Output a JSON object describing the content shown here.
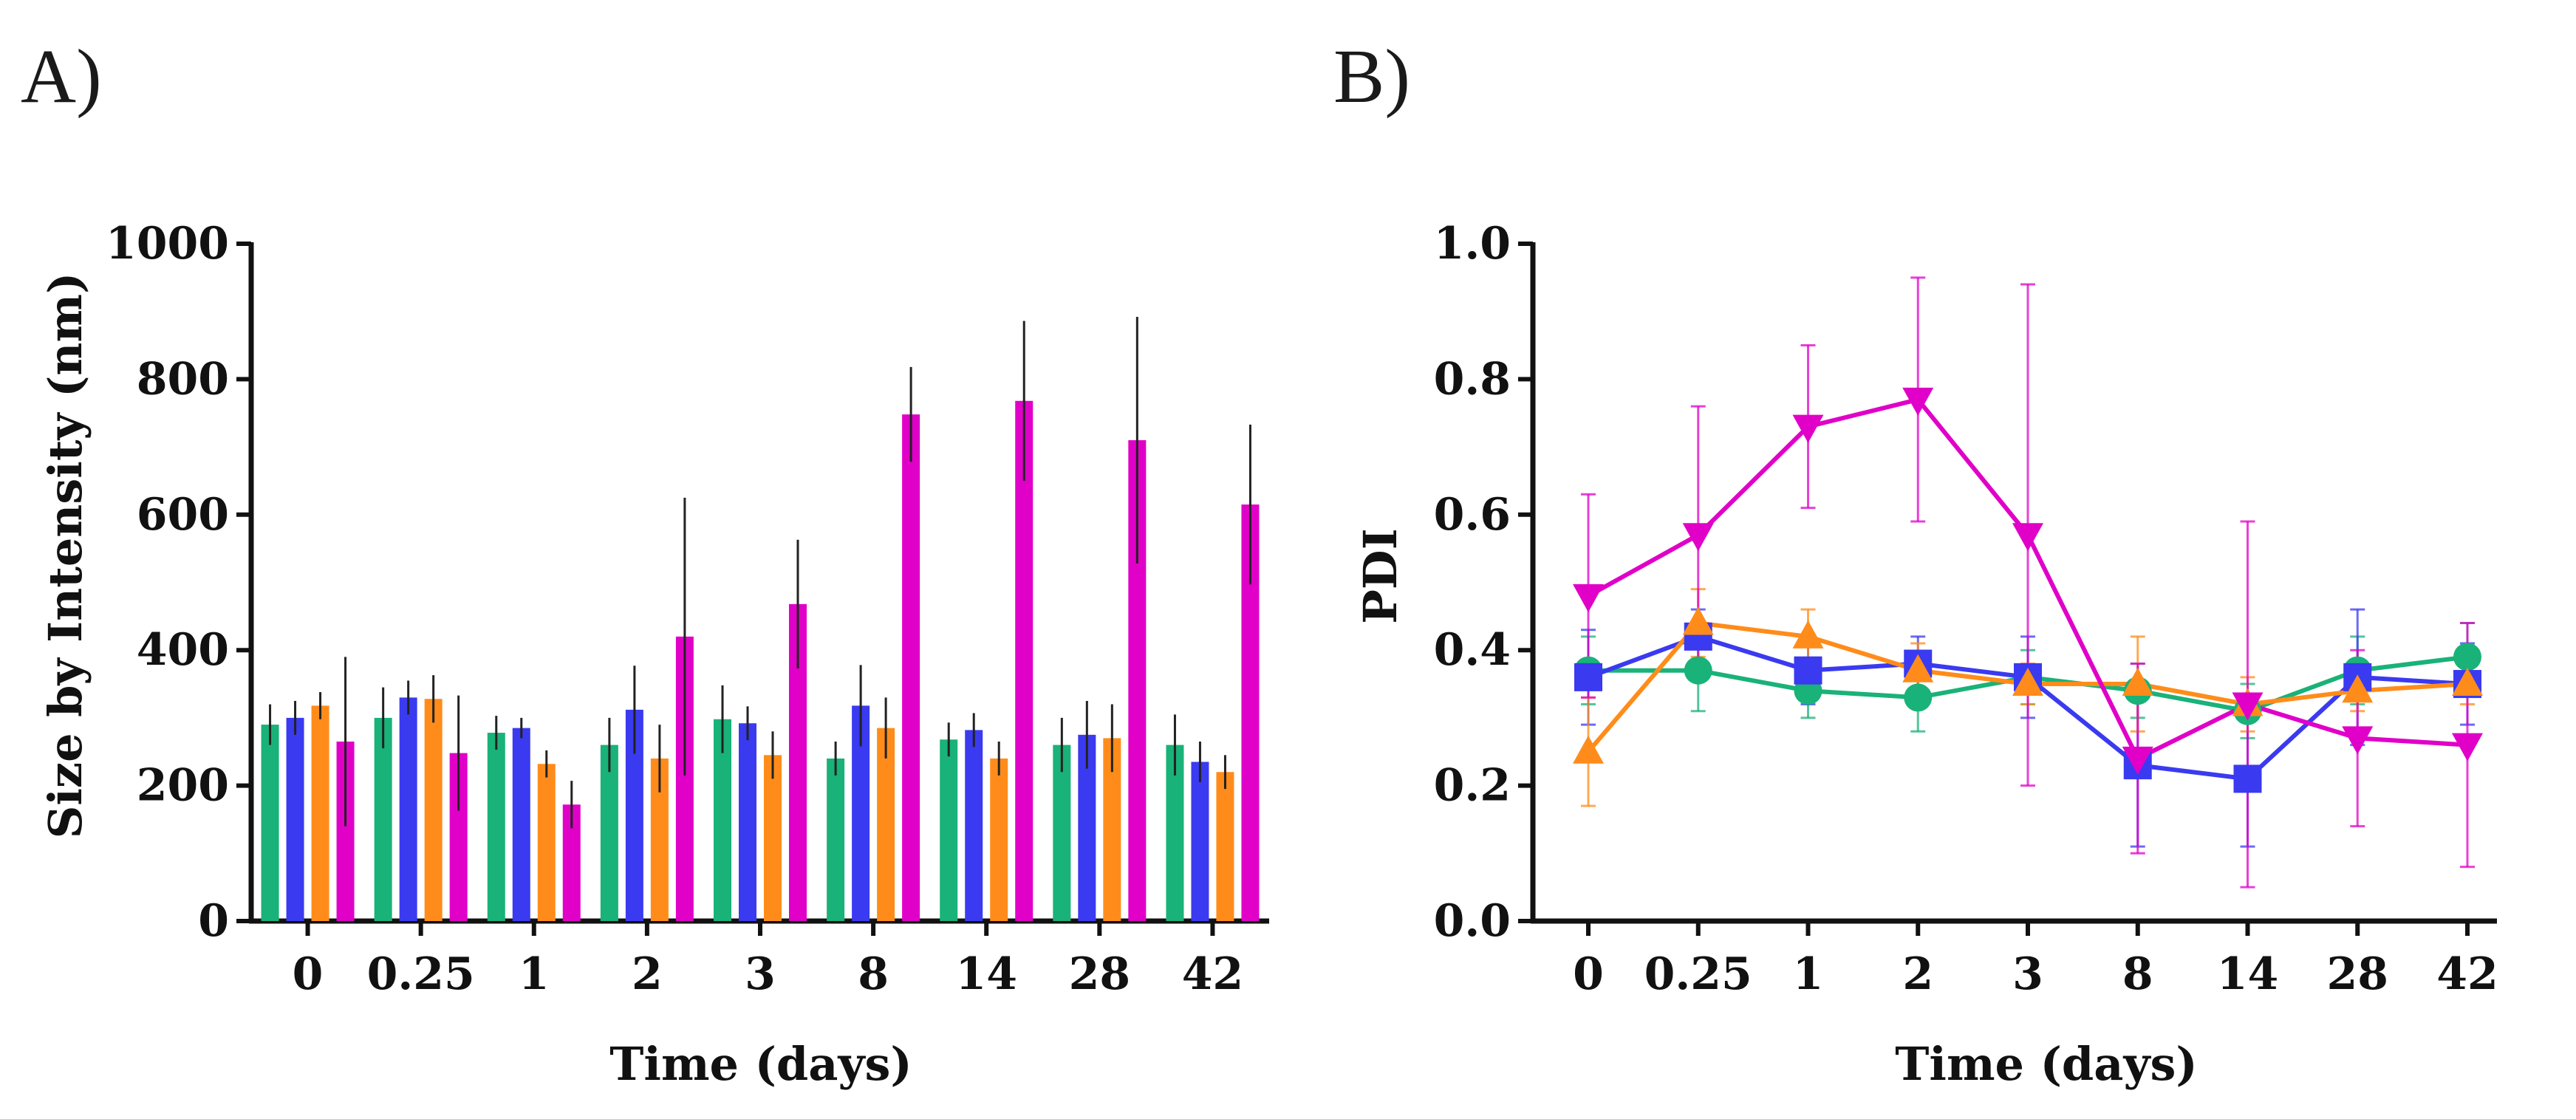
{
  "panels": {
    "a": {
      "label": "A)"
    },
    "b": {
      "label": "B)"
    }
  },
  "chart_data": [
    {
      "type": "bar",
      "title": "",
      "xlabel": "Time (days)",
      "ylabel": "Size by Intensity (nm)",
      "ylim": [
        0,
        1000
      ],
      "yticks": [
        0,
        200,
        400,
        600,
        800,
        1000
      ],
      "categories": [
        "0",
        "0.25",
        "1",
        "2",
        "3",
        "8",
        "14",
        "28",
        "42"
      ],
      "series": [
        {
          "color": "#19b278",
          "values": [
            290,
            300,
            278,
            260,
            298,
            240,
            268,
            260,
            260
          ],
          "errors": [
            30,
            45,
            25,
            40,
            50,
            25,
            25,
            40,
            45
          ]
        },
        {
          "color": "#3a3af0",
          "values": [
            300,
            330,
            285,
            312,
            292,
            318,
            282,
            275,
            235
          ],
          "errors": [
            25,
            25,
            15,
            65,
            25,
            60,
            25,
            50,
            30
          ]
        },
        {
          "color": "#ff8c1a",
          "values": [
            318,
            328,
            232,
            240,
            245,
            285,
            240,
            270,
            220
          ],
          "errors": [
            20,
            35,
            20,
            50,
            35,
            45,
            25,
            50,
            25
          ]
        },
        {
          "color": "#e000c8",
          "values": [
            265,
            248,
            172,
            420,
            468,
            748,
            768,
            710,
            615
          ],
          "errors": [
            125,
            85,
            35,
            205,
            95,
            70,
            118,
            182,
            118
          ]
        }
      ]
    },
    {
      "type": "line",
      "title": "",
      "xlabel": "Time (days)",
      "ylabel": "PDI",
      "ylim": [
        0,
        1
      ],
      "yticks": [
        "0.0",
        "0.2",
        "0.4",
        "0.6",
        "0.8",
        "1.0"
      ],
      "categories": [
        "0",
        "0.25",
        "1",
        "2",
        "3",
        "8",
        "14",
        "28",
        "42"
      ],
      "series": [
        {
          "color": "#19b278",
          "marker": "circle",
          "values": [
            0.37,
            0.37,
            0.34,
            0.33,
            0.36,
            0.34,
            0.31,
            0.37,
            0.39
          ],
          "errors": [
            0.05,
            0.06,
            0.04,
            0.05,
            0.04,
            0.04,
            0.04,
            0.05,
            0.05
          ]
        },
        {
          "color": "#3a3af0",
          "marker": "square",
          "values": [
            0.36,
            0.42,
            0.37,
            0.38,
            0.36,
            0.23,
            0.21,
            0.36,
            0.35
          ],
          "errors": [
            0.07,
            0.04,
            0.05,
            0.04,
            0.06,
            0.12,
            0.1,
            0.1,
            0.06
          ]
        },
        {
          "color": "#ff8c1a",
          "marker": "triangle-up",
          "values": [
            0.25,
            0.44,
            0.42,
            0.37,
            0.35,
            0.35,
            0.32,
            0.34,
            0.35
          ],
          "errors": [
            0.08,
            0.05,
            0.04,
            0.04,
            0.03,
            0.07,
            0.04,
            0.03,
            0.03
          ]
        },
        {
          "color": "#e000c8",
          "marker": "triangle-down",
          "values": [
            0.48,
            0.57,
            0.73,
            0.77,
            0.57,
            0.24,
            0.32,
            0.27,
            0.26
          ],
          "errors": [
            0.15,
            0.19,
            0.12,
            0.18,
            0.37,
            0.14,
            0.27,
            0.13,
            0.18
          ]
        }
      ]
    }
  ]
}
